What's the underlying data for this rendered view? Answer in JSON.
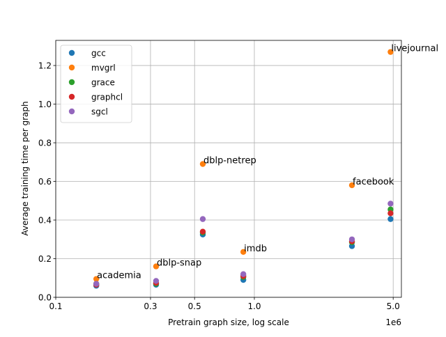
{
  "chart_data": {
    "type": "scatter",
    "title": "",
    "xlabel": "Pretrain graph size, log scale",
    "ylabel": "Average training time per graph",
    "x_scale": "log",
    "x_multiplier": "1e6",
    "xlim": [
      100000,
      5500000
    ],
    "ylim": [
      0,
      1.33
    ],
    "xticks": [
      {
        "value": 100000,
        "label": "0.1"
      },
      {
        "value": 300000,
        "label": "0.3"
      },
      {
        "value": 500000,
        "label": "0.5"
      },
      {
        "value": 1000000,
        "label": "1.0"
      },
      {
        "value": 5000000,
        "label": "5.0"
      }
    ],
    "yticks": [
      {
        "value": 0.0,
        "label": "0.0"
      },
      {
        "value": 0.2,
        "label": "0.2"
      },
      {
        "value": 0.4,
        "label": "0.4"
      },
      {
        "value": 0.6,
        "label": "0.6"
      },
      {
        "value": 0.8,
        "label": "0.8"
      },
      {
        "value": 1.0,
        "label": "1.0"
      },
      {
        "value": 1.2,
        "label": "1.2"
      }
    ],
    "grid": true,
    "legend_position": "top-left",
    "x": [
      160000,
      320000,
      550000,
      880000,
      3100000,
      4850000
    ],
    "annotations": [
      {
        "text": "academia",
        "x": 160000,
        "y": 0.095
      },
      {
        "text": "dblp-snap",
        "x": 320000,
        "y": 0.16
      },
      {
        "text": "dblp-netrep",
        "x": 550000,
        "y": 0.69
      },
      {
        "text": "imdb",
        "x": 880000,
        "y": 0.235
      },
      {
        "text": "facebook",
        "x": 3100000,
        "y": 0.58
      },
      {
        "text": "livejournal",
        "x": 4850000,
        "y": 1.27
      }
    ],
    "series": [
      {
        "name": "gcc",
        "color": "#1f77b4",
        "values": [
          0.06,
          0.065,
          0.325,
          0.09,
          0.265,
          0.405
        ]
      },
      {
        "name": "mvgrl",
        "color": "#ff7f0e",
        "values": [
          0.095,
          0.16,
          0.69,
          0.235,
          0.58,
          1.27
        ]
      },
      {
        "name": "grace",
        "color": "#2ca02c",
        "values": [
          0.07,
          0.07,
          0.335,
          0.105,
          0.285,
          0.455
        ]
      },
      {
        "name": "graphcl",
        "color": "#d62728",
        "values": [
          0.065,
          0.075,
          0.34,
          0.11,
          0.29,
          0.435
        ]
      },
      {
        "name": "sgcl",
        "color": "#9467bd",
        "values": [
          0.07,
          0.085,
          0.405,
          0.12,
          0.3,
          0.485
        ]
      }
    ]
  }
}
